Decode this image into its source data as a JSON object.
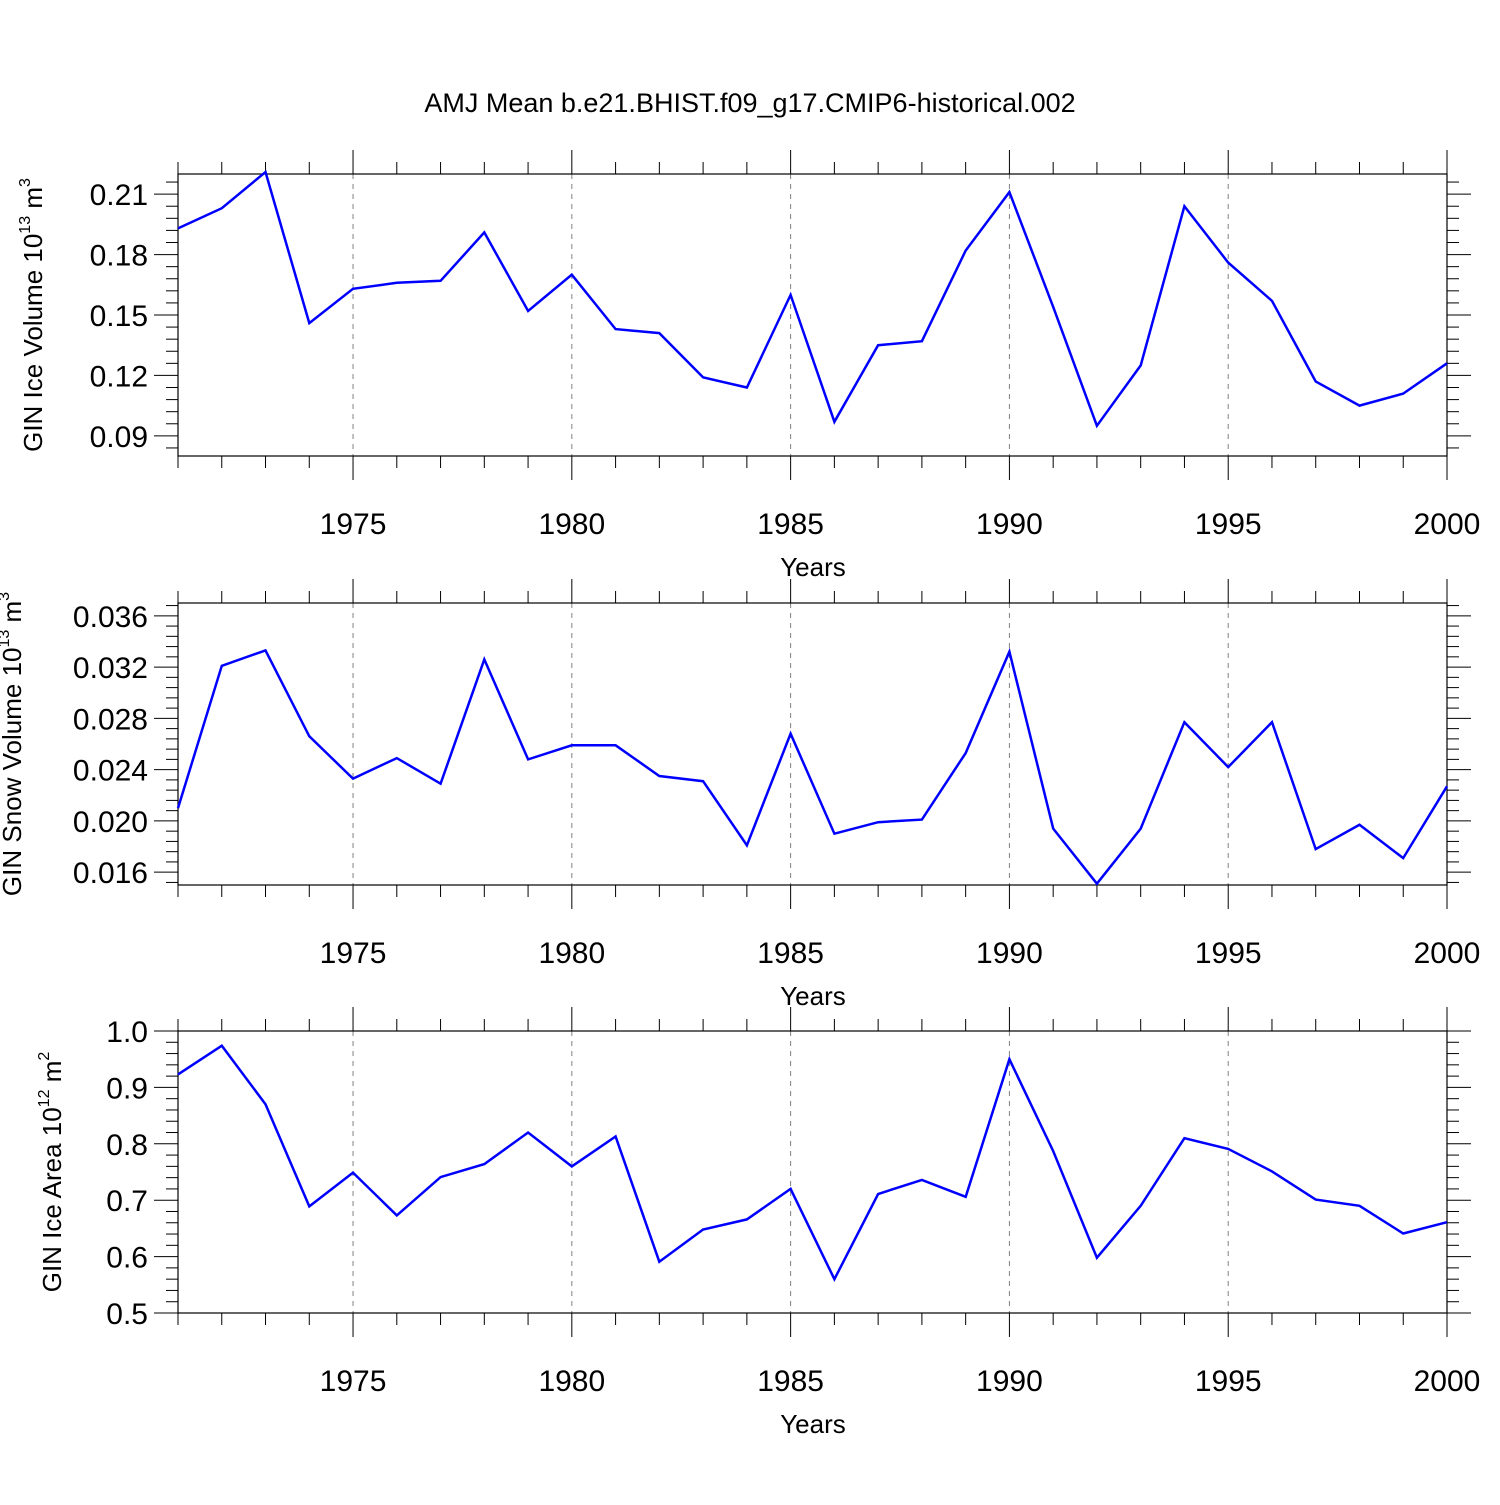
{
  "title": "AMJ Mean b.e21.BHIST.f09_g17.CMIP6-historical.002",
  "colors": {
    "line": "#0000ff",
    "axis": "#000000",
    "grid": "#808080"
  },
  "chart_data": [
    {
      "type": "line",
      "xlabel": "Years",
      "ylabel": {
        "text": "GIN Ice Volume 10",
        "sup": "13",
        "unit": " m",
        "unit_sup": "3"
      },
      "xlim": [
        1971,
        2000
      ],
      "ylim": [
        0.08,
        0.22
      ],
      "yticks": [
        "0.09",
        "0.12",
        "0.15",
        "0.18",
        "0.21"
      ],
      "xticks": [
        "1975",
        "1980",
        "1985",
        "1990",
        "1995",
        "2000"
      ],
      "x": [
        1971,
        1972,
        1973,
        1974,
        1975,
        1976,
        1977,
        1978,
        1979,
        1980,
        1981,
        1982,
        1983,
        1984,
        1985,
        1986,
        1987,
        1988,
        1989,
        1990,
        1991,
        1992,
        1993,
        1994,
        1995,
        1996,
        1997,
        1998,
        1999,
        2000
      ],
      "values": [
        0.193,
        0.203,
        0.221,
        0.146,
        0.163,
        0.166,
        0.167,
        0.191,
        0.152,
        0.17,
        0.143,
        0.141,
        0.119,
        0.114,
        0.16,
        0.097,
        0.135,
        0.137,
        0.182,
        0.211,
        0.154,
        0.095,
        0.125,
        0.204,
        0.176,
        0.157,
        0.117,
        0.105,
        0.111,
        0.126
      ]
    },
    {
      "type": "line",
      "xlabel": "Years",
      "ylabel": {
        "text": "GIN Snow Volume 10",
        "sup": "13",
        "unit": " m",
        "unit_sup": "3"
      },
      "xlim": [
        1971,
        2000
      ],
      "ylim": [
        0.015,
        0.037
      ],
      "yticks": [
        "0.016",
        "0.020",
        "0.024",
        "0.028",
        "0.032",
        "0.036"
      ],
      "xticks": [
        "1975",
        "1980",
        "1985",
        "1990",
        "1995",
        "2000"
      ],
      "x": [
        1971,
        1972,
        1973,
        1974,
        1975,
        1976,
        1977,
        1978,
        1979,
        1980,
        1981,
        1982,
        1983,
        1984,
        1985,
        1986,
        1987,
        1988,
        1989,
        1990,
        1991,
        1992,
        1993,
        1994,
        1995,
        1996,
        1997,
        1998,
        1999,
        2000
      ],
      "values": [
        0.021,
        0.0321,
        0.0333,
        0.0266,
        0.0233,
        0.0249,
        0.0229,
        0.0326,
        0.0248,
        0.0259,
        0.0259,
        0.0235,
        0.0231,
        0.0181,
        0.0268,
        0.019,
        0.0199,
        0.0201,
        0.0253,
        0.0332,
        0.0194,
        0.0151,
        0.0194,
        0.0277,
        0.0242,
        0.0277,
        0.0178,
        0.0197,
        0.0171,
        0.0227
      ]
    },
    {
      "type": "line",
      "xlabel": "Years",
      "ylabel": {
        "text": "GIN Ice Area 10",
        "sup": "12",
        "unit": " m",
        "unit_sup": "2"
      },
      "xlim": [
        1971,
        2000
      ],
      "ylim": [
        0.5,
        1.0
      ],
      "yticks": [
        "0.5",
        "0.6",
        "0.7",
        "0.8",
        "0.9",
        "1.0"
      ],
      "xticks": [
        "1975",
        "1980",
        "1985",
        "1990",
        "1995",
        "2000"
      ],
      "x": [
        1971,
        1972,
        1973,
        1974,
        1975,
        1976,
        1977,
        1978,
        1979,
        1980,
        1981,
        1982,
        1983,
        1984,
        1985,
        1986,
        1987,
        1988,
        1989,
        1990,
        1991,
        1992,
        1993,
        1994,
        1995,
        1996,
        1997,
        1998,
        1999,
        2000
      ],
      "values": [
        0.923,
        0.974,
        0.87,
        0.689,
        0.749,
        0.673,
        0.741,
        0.764,
        0.82,
        0.76,
        0.813,
        0.591,
        0.648,
        0.666,
        0.72,
        0.56,
        0.711,
        0.736,
        0.706,
        0.95,
        0.787,
        0.598,
        0.69,
        0.81,
        0.791,
        0.751,
        0.701,
        0.69,
        0.641,
        0.661
      ]
    }
  ]
}
